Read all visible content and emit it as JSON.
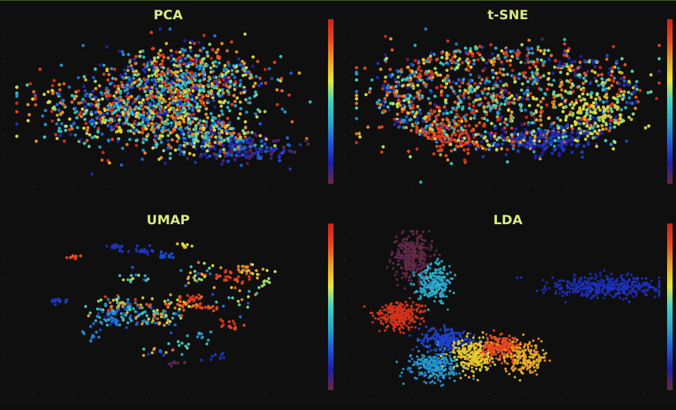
{
  "colors": {
    "background": "#0f0f0f",
    "title": "#d6ec7e",
    "colormap": [
      "#6b2a3a",
      "#1e1ea8",
      "#1e5adc",
      "#2aa8c8",
      "#3ed2c2",
      "#e8e838",
      "#e8a028",
      "#e84820",
      "#c82418"
    ]
  },
  "chart_data": [
    {
      "type": "scatter",
      "title": "PCA",
      "colorbar": true,
      "grid": false,
      "description_of_series": "dense point cloud, colors spread across full colormap",
      "clusters": [
        {
          "cx": 0.42,
          "cy": 0.52,
          "sx": 0.17,
          "sy": 0.12,
          "n": 900,
          "color_range": [
            0.1,
            1.0
          ]
        },
        {
          "cx": 0.58,
          "cy": 0.3,
          "sx": 0.12,
          "sy": 0.1,
          "n": 450,
          "color_range": [
            0.1,
            1.0
          ]
        },
        {
          "cx": 0.73,
          "cy": 0.78,
          "sx": 0.09,
          "sy": 0.05,
          "n": 160,
          "color_range": [
            0.0,
            0.3
          ]
        },
        {
          "cx": 0.62,
          "cy": 0.7,
          "sx": 0.1,
          "sy": 0.05,
          "n": 200,
          "color_range": [
            0.1,
            0.9
          ]
        }
      ]
    },
    {
      "type": "scatter",
      "title": "t-SNE",
      "colorbar": true,
      "grid": false,
      "description_of_series": "curved filament structures, colors spread across colormap",
      "clusters": [
        {
          "cx": 0.45,
          "cy": 0.48,
          "sx": 0.2,
          "sy": 0.15,
          "n": 700,
          "color_range": [
            0.3,
            1.0
          ]
        },
        {
          "cx": 0.5,
          "cy": 0.35,
          "sx": 0.22,
          "sy": 0.12,
          "n": 400,
          "color_range": [
            0.0,
            1.0
          ]
        },
        {
          "cx": 0.62,
          "cy": 0.72,
          "sx": 0.08,
          "sy": 0.05,
          "n": 260,
          "color_range": [
            0.1,
            0.22
          ]
        },
        {
          "cx": 0.3,
          "cy": 0.7,
          "sx": 0.05,
          "sy": 0.06,
          "n": 150,
          "color_range": [
            0.85,
            0.95
          ]
        },
        {
          "cx": 0.78,
          "cy": 0.55,
          "sx": 0.06,
          "sy": 0.08,
          "n": 150,
          "color_range": [
            0.55,
            0.7
          ]
        }
      ]
    },
    {
      "type": "scatter",
      "title": "UMAP",
      "colorbar": true,
      "grid": false,
      "description_of_series": "many small scattered clumps in full color range",
      "clusters": [
        {
          "cx": 0.15,
          "cy": 0.45,
          "sx": 0.015,
          "sy": 0.01,
          "n": 14,
          "color_range": [
            0.15,
            0.2
          ]
        },
        {
          "cx": 0.2,
          "cy": 0.17,
          "sx": 0.015,
          "sy": 0.01,
          "n": 10,
          "color_range": [
            0.85,
            0.9
          ]
        },
        {
          "cx": 0.33,
          "cy": 0.11,
          "sx": 0.015,
          "sy": 0.01,
          "n": 14,
          "color_range": [
            0.15,
            0.2
          ]
        },
        {
          "cx": 0.42,
          "cy": 0.13,
          "sx": 0.02,
          "sy": 0.01,
          "n": 20,
          "color_range": [
            0.15,
            0.2
          ]
        },
        {
          "cx": 0.49,
          "cy": 0.16,
          "sx": 0.015,
          "sy": 0.01,
          "n": 14,
          "color_range": [
            0.2,
            0.25
          ]
        },
        {
          "cx": 0.55,
          "cy": 0.1,
          "sx": 0.01,
          "sy": 0.01,
          "n": 8,
          "color_range": [
            0.6,
            0.7
          ]
        },
        {
          "cx": 0.36,
          "cy": 0.49,
          "sx": 0.06,
          "sy": 0.03,
          "n": 80,
          "color_range": [
            0.15,
            0.95
          ]
        },
        {
          "cx": 0.33,
          "cy": 0.56,
          "sx": 0.04,
          "sy": 0.03,
          "n": 60,
          "color_range": [
            0.1,
            0.5
          ]
        },
        {
          "cx": 0.47,
          "cy": 0.55,
          "sx": 0.04,
          "sy": 0.03,
          "n": 50,
          "color_range": [
            0.2,
            0.9
          ]
        },
        {
          "cx": 0.55,
          "cy": 0.47,
          "sx": 0.03,
          "sy": 0.03,
          "n": 40,
          "color_range": [
            0.6,
            0.95
          ]
        },
        {
          "cx": 0.71,
          "cy": 0.3,
          "sx": 0.03,
          "sy": 0.02,
          "n": 25,
          "color_range": [
            0.85,
            0.95
          ]
        },
        {
          "cx": 0.77,
          "cy": 0.25,
          "sx": 0.03,
          "sy": 0.02,
          "n": 25,
          "color_range": [
            0.6,
            0.9
          ]
        },
        {
          "cx": 0.6,
          "cy": 0.28,
          "sx": 0.03,
          "sy": 0.03,
          "n": 25,
          "color_range": [
            0.15,
            0.9
          ]
        },
        {
          "cx": 0.64,
          "cy": 0.5,
          "sx": 0.02,
          "sy": 0.01,
          "n": 12,
          "color_range": [
            0.85,
            0.9
          ]
        },
        {
          "cx": 0.7,
          "cy": 0.6,
          "sx": 0.03,
          "sy": 0.02,
          "n": 14,
          "color_range": [
            0.85,
            0.95
          ]
        },
        {
          "cx": 0.6,
          "cy": 0.67,
          "sx": 0.02,
          "sy": 0.02,
          "n": 10,
          "color_range": [
            0.3,
            0.4
          ]
        },
        {
          "cx": 0.82,
          "cy": 0.32,
          "sx": 0.01,
          "sy": 0.02,
          "n": 8,
          "color_range": [
            0.55,
            0.6
          ]
        },
        {
          "cx": 0.25,
          "cy": 0.68,
          "sx": 0.02,
          "sy": 0.03,
          "n": 10,
          "color_range": [
            0.3,
            0.35
          ]
        },
        {
          "cx": 0.53,
          "cy": 0.85,
          "sx": 0.02,
          "sy": 0.01,
          "n": 8,
          "color_range": [
            0.0,
            0.05
          ]
        },
        {
          "cx": 0.55,
          "cy": 0.73,
          "sx": 0.02,
          "sy": 0.01,
          "n": 8,
          "color_range": [
            0.45,
            0.55
          ]
        },
        {
          "cx": 0.48,
          "cy": 0.78,
          "sx": 0.04,
          "sy": 0.02,
          "n": 14,
          "color_range": [
            0.15,
            0.85
          ]
        },
        {
          "cx": 0.66,
          "cy": 0.8,
          "sx": 0.02,
          "sy": 0.02,
          "n": 8,
          "color_range": [
            0.15,
            0.2
          ]
        },
        {
          "cx": 0.58,
          "cy": 0.43,
          "sx": 0.02,
          "sy": 0.02,
          "n": 12,
          "color_range": [
            0.9,
            0.95
          ]
        },
        {
          "cx": 0.4,
          "cy": 0.3,
          "sx": 0.03,
          "sy": 0.02,
          "n": 14,
          "color_range": [
            0.15,
            0.7
          ]
        },
        {
          "cx": 0.72,
          "cy": 0.43,
          "sx": 0.05,
          "sy": 0.04,
          "n": 20,
          "color_range": [
            0.15,
            0.9
          ]
        }
      ]
    },
    {
      "type": "scatter",
      "title": "LDA",
      "colorbar": true,
      "grid": false,
      "description_of_series": "well separated dense clusters",
      "clusters": [
        {
          "cx": 0.19,
          "cy": 0.17,
          "sx": 0.028,
          "sy": 0.07,
          "n": 320,
          "color_range": [
            0.0,
            0.03
          ]
        },
        {
          "cx": 0.26,
          "cy": 0.34,
          "sx": 0.028,
          "sy": 0.06,
          "n": 240,
          "color_range": [
            0.35,
            0.42
          ]
        },
        {
          "cx": 0.15,
          "cy": 0.55,
          "sx": 0.035,
          "sy": 0.04,
          "n": 300,
          "color_range": [
            0.93,
            0.97
          ]
        },
        {
          "cx": 0.82,
          "cy": 0.36,
          "sx": 0.09,
          "sy": 0.035,
          "n": 420,
          "color_range": [
            0.14,
            0.18
          ]
        },
        {
          "cx": 0.3,
          "cy": 0.7,
          "sx": 0.04,
          "sy": 0.035,
          "n": 230,
          "color_range": [
            0.18,
            0.22
          ]
        },
        {
          "cx": 0.26,
          "cy": 0.86,
          "sx": 0.04,
          "sy": 0.05,
          "n": 280,
          "color_range": [
            0.3,
            0.38
          ]
        },
        {
          "cx": 0.39,
          "cy": 0.8,
          "sx": 0.035,
          "sy": 0.05,
          "n": 260,
          "color_range": [
            0.65,
            0.72
          ]
        },
        {
          "cx": 0.48,
          "cy": 0.75,
          "sx": 0.03,
          "sy": 0.04,
          "n": 200,
          "color_range": [
            0.85,
            0.9
          ]
        },
        {
          "cx": 0.55,
          "cy": 0.82,
          "sx": 0.03,
          "sy": 0.05,
          "n": 200,
          "color_range": [
            0.7,
            0.78
          ]
        }
      ]
    }
  ]
}
